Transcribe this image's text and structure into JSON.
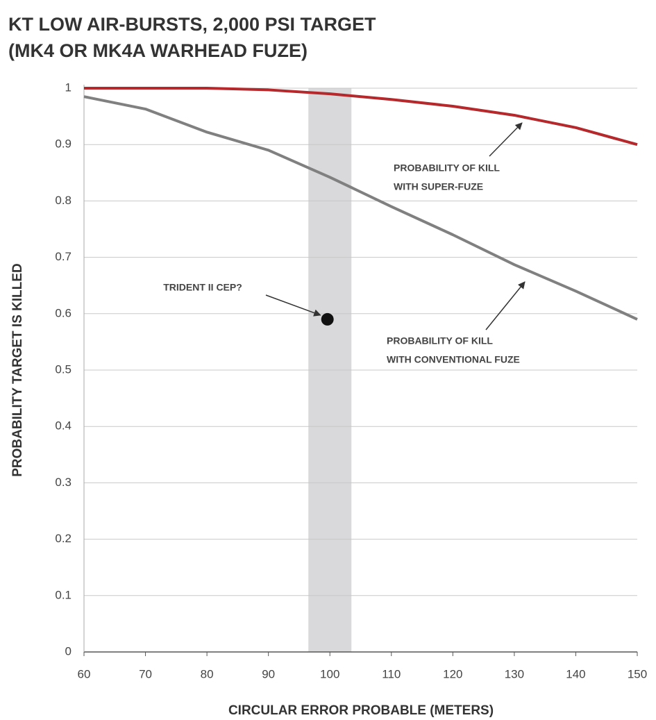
{
  "chart_data": {
    "type": "line",
    "title": [
      "KT LOW AIR-BURSTS, 2,000 PSI TARGET",
      "(MK4 OR MK4A WARHEAD FUZE)"
    ],
    "x_label": "CIRCULAR ERROR PROBABLE (METERS)",
    "y_label": "PROBABILITY TARGET IS KILLED",
    "x": [
      60,
      70,
      80,
      90,
      100,
      110,
      120,
      130,
      140,
      150
    ],
    "series": [
      {
        "label": [
          "PROBABILITY OF KILL",
          "WITH SUPER-FUZE"
        ],
        "color": "#b5282b",
        "values": [
          1.0,
          1.0,
          1.0,
          0.997,
          0.99,
          0.98,
          0.968,
          0.952,
          0.93,
          0.9
        ]
      },
      {
        "label": [
          "PROBABILITY OF KILL",
          "WITH CONVENTIONAL FUZE"
        ],
        "color": "#808080",
        "values": [
          0.985,
          0.963,
          0.922,
          0.89,
          0.842,
          0.79,
          0.74,
          0.687,
          0.64,
          0.59
        ]
      }
    ],
    "shaded_range": [
      96.5,
      103.5
    ],
    "point": {
      "label": "TRIDENT II CEP?",
      "x": 99.6,
      "y": 0.59
    },
    "xlim": [
      60,
      150
    ],
    "xticks": [
      60,
      70,
      80,
      90,
      100,
      110,
      120,
      130,
      140,
      150
    ],
    "ylim": [
      0,
      1
    ],
    "yticks": [
      0,
      0.1,
      0.2,
      0.3,
      0.4,
      0.5,
      0.6,
      0.7,
      0.8,
      0.9,
      1
    ],
    "grid": true
  }
}
